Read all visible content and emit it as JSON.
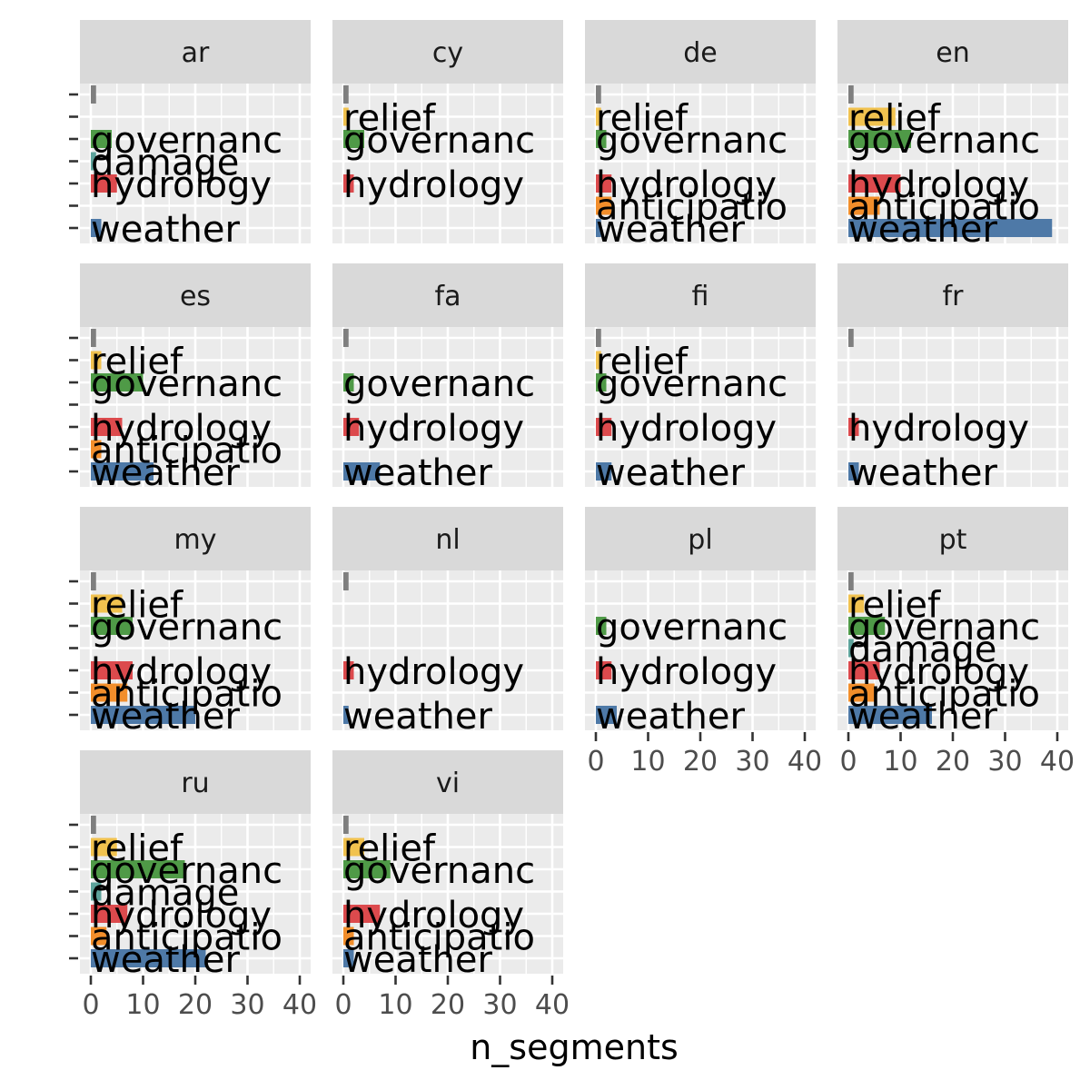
{
  "chart_data": {
    "type": "bar",
    "orientation": "horizontal",
    "faceted": true,
    "xlabel": "n_segments",
    "xlim": [
      0,
      40
    ],
    "x_ticks": [
      0,
      10,
      20,
      30,
      40
    ],
    "grid": true,
    "legend": "none",
    "categories": [
      "",
      "relief",
      "governance",
      "damage",
      "hydrology",
      "anticipation",
      "weather"
    ],
    "labels": [
      "",
      "relief",
      "governanc",
      "damage",
      "hydrology",
      "anticipatio",
      "weather"
    ],
    "colors": {
      "": "#7f7f7f",
      "relief": "#f1c24f",
      "governance": "#4f9a47",
      "damage": "#5da39b",
      "hydrology": "#dc4a4d",
      "anticipation": "#f28e2b",
      "weather": "#4e79a7"
    },
    "panels": [
      {
        "name": "ar",
        "values": {
          "": 1,
          "governance": 4,
          "damage": 1,
          "hydrology": 5,
          "weather": 2
        }
      },
      {
        "name": "cy",
        "values": {
          "": 1,
          "relief": 1,
          "governance": 4,
          "hydrology": 2
        }
      },
      {
        "name": "de",
        "values": {
          "": 1,
          "relief": 1,
          "governance": 2,
          "hydrology": 3,
          "anticipation": 3,
          "weather": 1
        }
      },
      {
        "name": "en",
        "values": {
          "": 1,
          "relief": 9,
          "governance": 12,
          "hydrology": 10,
          "anticipation": 6,
          "weather": 39
        }
      },
      {
        "name": "es",
        "values": {
          "": 1,
          "relief": 2,
          "governance": 10,
          "hydrology": 6,
          "anticipation": 2,
          "weather": 12
        }
      },
      {
        "name": "fa",
        "values": {
          "": 1,
          "governance": 2,
          "hydrology": 3,
          "weather": 7
        }
      },
      {
        "name": "fi",
        "values": {
          "": 1,
          "relief": 1,
          "governance": 2,
          "hydrology": 3,
          "weather": 3
        }
      },
      {
        "name": "fr",
        "values": {
          "": 1,
          "hydrology": 2,
          "weather": 2
        }
      },
      {
        "name": "my",
        "values": {
          "": 1,
          "relief": 6,
          "governance": 8,
          "hydrology": 8,
          "anticipation": 7,
          "weather": 20
        }
      },
      {
        "name": "nl",
        "values": {
          "": 1,
          "hydrology": 2,
          "weather": 1
        }
      },
      {
        "name": "pl",
        "values": {
          "governance": 2,
          "hydrology": 3,
          "weather": 4
        }
      },
      {
        "name": "pt",
        "values": {
          "": 1,
          "relief": 3,
          "governance": 7,
          "damage": 1,
          "hydrology": 6,
          "anticipation": 5,
          "weather": 16
        }
      },
      {
        "name": "ru",
        "values": {
          "": 1,
          "relief": 5,
          "governance": 18,
          "damage": 2,
          "hydrology": 7,
          "anticipation": 3,
          "weather": 22
        }
      },
      {
        "name": "vi",
        "values": {
          "": 1,
          "relief": 4,
          "governance": 9,
          "hydrology": 7,
          "anticipation": 2,
          "weather": 2
        }
      }
    ]
  }
}
